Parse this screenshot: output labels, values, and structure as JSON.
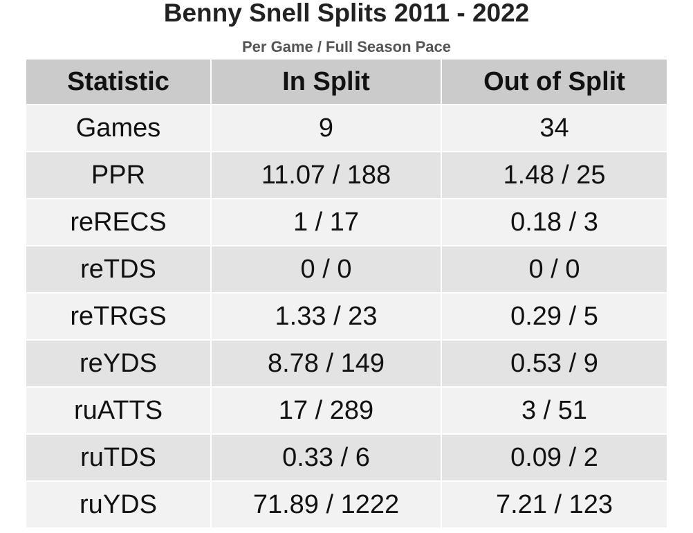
{
  "header": {
    "title": "Benny Snell Splits 2011 - 2022",
    "subtitle": "Per Game / Full Season Pace"
  },
  "table": {
    "columns": [
      "Statistic",
      "In Split",
      "Out of Split"
    ],
    "rows": [
      [
        "Games",
        "9",
        "34"
      ],
      [
        "PPR",
        "11.07 / 188",
        "1.48 / 25"
      ],
      [
        "reRECS",
        "1 / 17",
        "0.18 / 3"
      ],
      [
        "reTDS",
        "0 / 0",
        "0 / 0"
      ],
      [
        "reTRGS",
        "1.33 / 23",
        "0.29 / 5"
      ],
      [
        "reYDS",
        "8.78 / 149",
        "0.53 / 9"
      ],
      [
        "ruATTS",
        "17 / 289",
        "3 / 51"
      ],
      [
        "ruTDS",
        "0.33 / 6",
        "0.09 / 2"
      ],
      [
        "ruYDS",
        "71.89 / 1222",
        "7.21 / 123"
      ]
    ]
  }
}
